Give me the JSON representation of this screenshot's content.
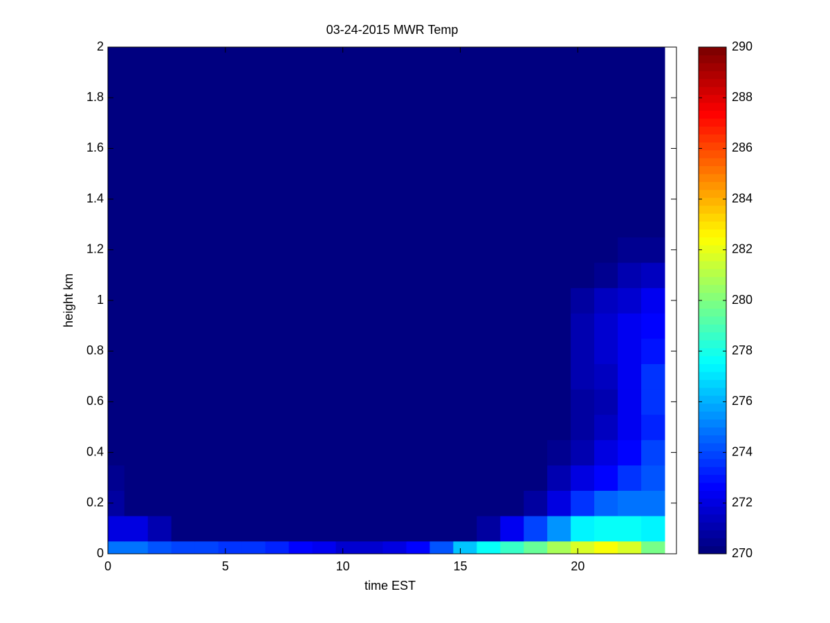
{
  "chart_data": {
    "type": "heatmap",
    "title": "03-24-2015 MWR Temp",
    "xlabel": "time EST",
    "ylabel": "height km",
    "x_edges": [
      0,
      0.7,
      1.7,
      2.7,
      3.7,
      4.7,
      5.7,
      6.7,
      7.7,
      8.7,
      9.7,
      10.7,
      11.7,
      12.7,
      13.7,
      14.7,
      15.7,
      16.7,
      17.7,
      18.7,
      19.7,
      20.7,
      21.7,
      22.7,
      23.7
    ],
    "y_edges": [
      0,
      0.05,
      0.15,
      0.25,
      0.35,
      0.45,
      0.55,
      0.65,
      0.75,
      0.85,
      0.95,
      1.05,
      1.15,
      1.25,
      2
    ],
    "z": [
      [
        274.7,
        274.7,
        274.2,
        273.8,
        273.8,
        273.6,
        273.6,
        273.2,
        272.7,
        272.4,
        271.8,
        271.6,
        272.1,
        272.7,
        274.2,
        276.3,
        277.6,
        278.6,
        279.5,
        280.7,
        281.6,
        282.2,
        281.8,
        279.8
      ],
      [
        272,
        272,
        271.2,
        270,
        270,
        270,
        270,
        270,
        270,
        270,
        270,
        270,
        270,
        270,
        270,
        270,
        270.8,
        272.2,
        274,
        275.5,
        277.3,
        277.8,
        277.8,
        277.5
      ],
      [
        270.7,
        270,
        270,
        270,
        270,
        270,
        270,
        270,
        270,
        270,
        270,
        270,
        270,
        270,
        270,
        270,
        270,
        270,
        270.8,
        272,
        273.5,
        274.5,
        274.8,
        275
      ],
      [
        270.4,
        270,
        270,
        270,
        270,
        270,
        270,
        270,
        270,
        270,
        270,
        270,
        270,
        270,
        270,
        270,
        270,
        270,
        270,
        271.2,
        272,
        272.8,
        273.5,
        274.3
      ],
      [
        270,
        270,
        270,
        270,
        270,
        270,
        270,
        270,
        270,
        270,
        270,
        270,
        270,
        270,
        270,
        270,
        270,
        270,
        270,
        270.6,
        271,
        272,
        272.7,
        274
      ],
      [
        270,
        270,
        270,
        270,
        270,
        270,
        270,
        270,
        270,
        270,
        270,
        270,
        270,
        270,
        270,
        270,
        270,
        270,
        270,
        270,
        270.8,
        271.3,
        272.2,
        273.2
      ],
      [
        270,
        270,
        270,
        270,
        270,
        270,
        270,
        270,
        270,
        270,
        270,
        270,
        270,
        270,
        270,
        270,
        270,
        270,
        270,
        270,
        270.8,
        271.2,
        272.2,
        273.5
      ],
      [
        270,
        270,
        270,
        270,
        270,
        270,
        270,
        270,
        270,
        270,
        270,
        270,
        270,
        270,
        270,
        270,
        270,
        270,
        270,
        270,
        271,
        271.5,
        272.5,
        273.5
      ],
      [
        270,
        270,
        270,
        270,
        270,
        270,
        270,
        270,
        270,
        270,
        270,
        270,
        270,
        270,
        270,
        270,
        270,
        270,
        270,
        270,
        271,
        271.8,
        272.3,
        273
      ],
      [
        270,
        270,
        270,
        270,
        270,
        270,
        270,
        270,
        270,
        270,
        270,
        270,
        270,
        270,
        270,
        270,
        270,
        270,
        270,
        270,
        271,
        271.6,
        272.2,
        272.8
      ],
      [
        270,
        270,
        270,
        270,
        270,
        270,
        270,
        270,
        270,
        270,
        270,
        270,
        270,
        270,
        270,
        270,
        270,
        270,
        270,
        270,
        270.8,
        271.3,
        271.8,
        272.5
      ],
      [
        270,
        270,
        270,
        270,
        270,
        270,
        270,
        270,
        270,
        270,
        270,
        270,
        270,
        270,
        270,
        270,
        270,
        270,
        270,
        270,
        270,
        270.6,
        271.2,
        271.5
      ],
      [
        270,
        270,
        270,
        270,
        270,
        270,
        270,
        270,
        270,
        270,
        270,
        270,
        270,
        270,
        270,
        270,
        270,
        270,
        270,
        270,
        270,
        270,
        270.5,
        270.6
      ],
      [
        270,
        270,
        270,
        270,
        270,
        270,
        270,
        270,
        270,
        270,
        270,
        270,
        270,
        270,
        270,
        270,
        270,
        270,
        270,
        270,
        270,
        270,
        270,
        270
      ]
    ],
    "xlim": [
      0,
      24.2
    ],
    "xticks": [
      0,
      5,
      10,
      15,
      20
    ],
    "ylim": [
      0,
      2
    ],
    "yticks": [
      0,
      0.2,
      0.4,
      0.6,
      0.8,
      1,
      1.2,
      1.4,
      1.6,
      1.8,
      2
    ],
    "clim": [
      270,
      290
    ],
    "cticks": [
      270,
      272,
      274,
      276,
      278,
      280,
      282,
      284,
      286,
      288,
      290
    ],
    "colormap": "jet"
  }
}
